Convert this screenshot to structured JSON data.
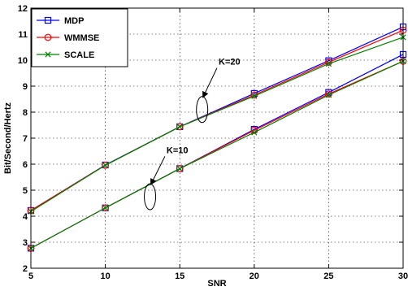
{
  "chart_data": {
    "type": "line",
    "title": "",
    "xlabel": "SNR",
    "ylabel": "Bit/Second/Hertz",
    "xlim": [
      5,
      30
    ],
    "ylim": [
      2,
      12
    ],
    "xticks": [
      "5",
      "10",
      "15",
      "20",
      "25",
      "30"
    ],
    "yticks": [
      "2",
      "3",
      "4",
      "5",
      "6",
      "7",
      "8",
      "9",
      "10",
      "11",
      "12"
    ],
    "grid": true,
    "legend_position": "top-left",
    "x": [
      5,
      10,
      15,
      20,
      25,
      30
    ],
    "series": [
      {
        "name": "MDP",
        "group": "K=20",
        "color": "#0000ff",
        "marker": "square",
        "values": [
          4.22,
          5.97,
          7.44,
          8.72,
          9.98,
          11.28
        ]
      },
      {
        "name": "WMMSE",
        "group": "K=20",
        "color": "#ff0000",
        "marker": "circle",
        "values": [
          4.22,
          5.96,
          7.44,
          8.66,
          9.92,
          11.15
        ]
      },
      {
        "name": "SCALE",
        "group": "K=20",
        "color": "#008000",
        "marker": "x",
        "values": [
          4.18,
          5.96,
          7.44,
          8.62,
          9.86,
          10.88
        ]
      },
      {
        "name": "MDP",
        "group": "K=10",
        "color": "#0000ff",
        "marker": "square",
        "values": [
          2.77,
          4.32,
          5.83,
          7.34,
          8.76,
          10.22
        ]
      },
      {
        "name": "WMMSE",
        "group": "K=10",
        "color": "#ff0000",
        "marker": "circle",
        "values": [
          2.77,
          4.32,
          5.83,
          7.3,
          8.7,
          9.96
        ]
      },
      {
        "name": "SCALE",
        "group": "K=10",
        "color": "#008000",
        "marker": "x",
        "values": [
          2.77,
          4.32,
          5.83,
          7.22,
          8.66,
          9.96
        ]
      }
    ],
    "legend": [
      {
        "label": "MDP",
        "color": "#0000ff",
        "marker": "square"
      },
      {
        "label": "WMMSE",
        "color": "#ff0000",
        "marker": "circle"
      },
      {
        "label": "SCALE",
        "color": "#008000",
        "marker": "x"
      }
    ],
    "annotations": [
      {
        "text": "K=20",
        "ellipse_at": [
          16.5,
          8.1
        ],
        "arrow_tail": [
          17.5,
          9.7
        ]
      },
      {
        "text": "K=10",
        "ellipse_at": [
          13.0,
          4.75
        ],
        "arrow_tail": [
          14.0,
          6.3
        ]
      }
    ]
  }
}
